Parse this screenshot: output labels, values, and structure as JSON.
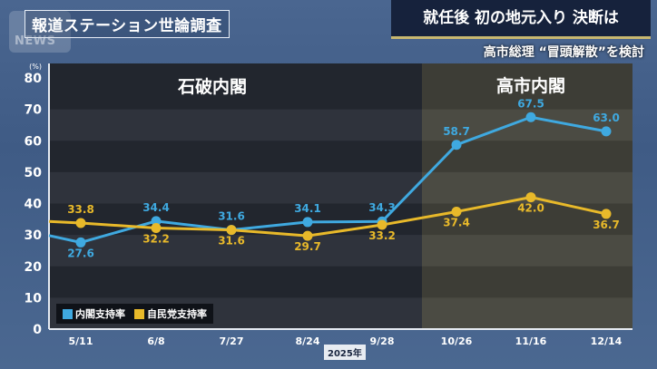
{
  "header": {
    "logo_text": "NEWS",
    "survey_title": "報道ステーション世論調査",
    "headline": "就任後 初の地元入り 決断は",
    "subheadline": "高市総理 “冒頭解散”を検討"
  },
  "colors": {
    "cabinet": "#3fa9e0",
    "ldp": "#e8b92a",
    "ishiba_bg": "#2b2f38",
    "takaichi_bg": "#4a4a40"
  },
  "chart_data": {
    "type": "line",
    "title": "報道ステーション世論調査",
    "xlabel": "2025年",
    "ylabel": "(%)",
    "ylim": [
      0,
      80
    ],
    "yticks": [
      0,
      10,
      20,
      30,
      40,
      50,
      60,
      70,
      80
    ],
    "categories": [
      "5/11",
      "6/8",
      "7/27",
      "8/24",
      "9/28",
      "10/26",
      "11/16",
      "12/14"
    ],
    "series": [
      {
        "name": "内閣支持率",
        "color": "#3fa9e0",
        "values": [
          27.6,
          34.4,
          31.6,
          34.1,
          34.3,
          58.7,
          67.5,
          63.0
        ]
      },
      {
        "name": "自民党支持率",
        "color": "#e8b92a",
        "values": [
          33.8,
          32.2,
          31.6,
          29.7,
          33.2,
          37.4,
          42.0,
          36.7
        ]
      }
    ],
    "annotations": [
      {
        "text": "石破内閣",
        "range": [
          "5/11",
          "9/28"
        ]
      },
      {
        "text": "高市内閣",
        "range": [
          "10/26",
          "12/14"
        ]
      }
    ],
    "legend_position": "bottom-left",
    "grid": "alternating bands"
  },
  "axis": {
    "unit": "(%)",
    "year_label": "2025年"
  },
  "legend": {
    "cabinet": "内閣支持率",
    "ldp": "自民党支持率"
  }
}
